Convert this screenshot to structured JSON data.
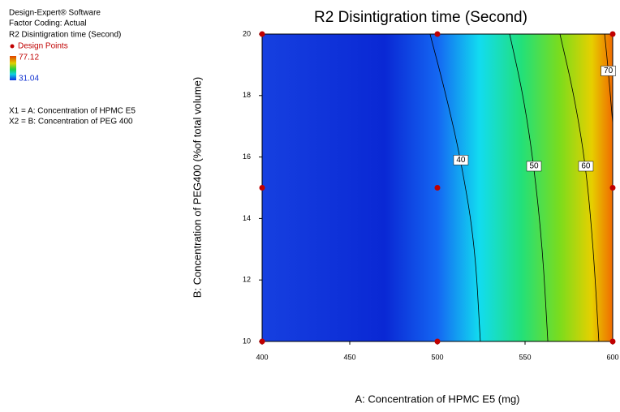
{
  "chart_data": {
    "type": "contour",
    "title": "R2 Disintigration time (Second)",
    "x_label": "A: Concentration of HPMC E5 (mg)",
    "y_label": "B: Concentration of PEG400 (%of total volume)",
    "xlim": [
      400,
      600
    ],
    "ylim": [
      10,
      20
    ],
    "xticks": [
      400,
      450,
      500,
      550,
      600
    ],
    "yticks": [
      10,
      12,
      14,
      16,
      18,
      20
    ],
    "info": [
      "Design-Expert® Software",
      "Factor Coding: Actual",
      "R2 Disintigration time (Second)"
    ],
    "points_name": "Design Points",
    "point_color": "#c00000",
    "color_scale": {
      "max": 77.12,
      "min": 31.04
    },
    "factors": [
      "X1 = A: Concentration of HPMC E5",
      "X2 = B: Concentration of PEG 400"
    ],
    "points": {
      "x": [
        400,
        500,
        600,
        400,
        500,
        600,
        400,
        500,
        600
      ],
      "y": [
        20,
        20,
        20,
        15,
        15,
        15,
        10,
        10,
        10
      ]
    },
    "contours": [
      {
        "level": 40,
        "x": [
          495.8,
          505,
          513.4,
          521.3,
          524.5
        ],
        "y": [
          20,
          18,
          15.9,
          13.2,
          10
        ],
        "label_at": [
          513.4,
          15.9
        ]
      },
      {
        "level": 50,
        "x": [
          541.2,
          549,
          555.1,
          560,
          563
        ],
        "y": [
          20,
          18,
          15.7,
          13,
          10
        ],
        "label_at": [
          555.1,
          15.7
        ]
      },
      {
        "level": 60,
        "x": [
          569.9,
          578,
          584.7,
          589,
          592.1
        ],
        "y": [
          20,
          18,
          15.7,
          13,
          10
        ],
        "label_at": [
          584.7,
          15.7
        ]
      },
      {
        "level": 70,
        "x": [
          595.4,
          597.5,
          600
        ],
        "y": [
          20,
          18.8,
          17.1
        ],
        "label_at": [
          597.5,
          18.8
        ]
      }
    ]
  }
}
